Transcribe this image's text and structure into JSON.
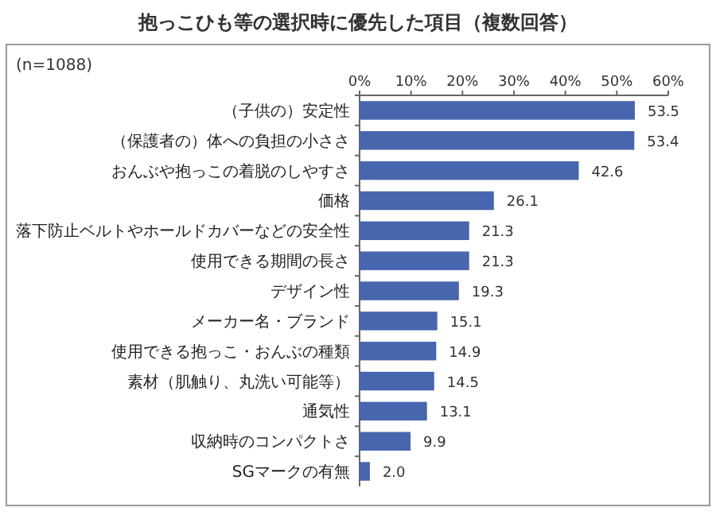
{
  "chart_data": {
    "type": "bar",
    "orientation": "horizontal",
    "title": "抱っこひも等の選択時に優先した項目（複数回答）",
    "annotations": [
      "(n=1088)"
    ],
    "categories": [
      "（子供の）安定性",
      "（保護者の）体への負担の小ささ",
      "おんぶや抱っこの着脱のしやすさ",
      "価格",
      "落下防止ベルトやホールドカバーなどの安全性",
      "使用できる期間の長さ",
      "デザイン性",
      "メーカー名・ブランド",
      "使用できる抱っこ・おんぶの種類",
      "素材（肌触り、丸洗い可能等）",
      "通気性",
      "収納時のコンパクトさ",
      "SGマークの有無"
    ],
    "values": [
      53.5,
      53.4,
      42.6,
      26.1,
      21.3,
      21.3,
      19.3,
      15.1,
      14.9,
      14.5,
      13.1,
      9.9,
      2.0
    ],
    "color": "#4766ad",
    "xlim": [
      0,
      60
    ],
    "xticks": [
      {
        "value": 0,
        "label": "0%"
      },
      {
        "value": 10,
        "label": "10%"
      },
      {
        "value": 20,
        "label": "20%"
      },
      {
        "value": 30,
        "label": "30%"
      },
      {
        "value": 40,
        "label": "40%"
      },
      {
        "value": 50,
        "label": "50%"
      },
      {
        "value": 60,
        "label": "60%"
      }
    ],
    "value_labels": [
      "53.5",
      "53.4",
      "42.6",
      "26.1",
      "21.3",
      "21.3",
      "19.3",
      "15.1",
      "14.9",
      "14.5",
      "13.1",
      "9.9",
      "2.0"
    ]
  }
}
